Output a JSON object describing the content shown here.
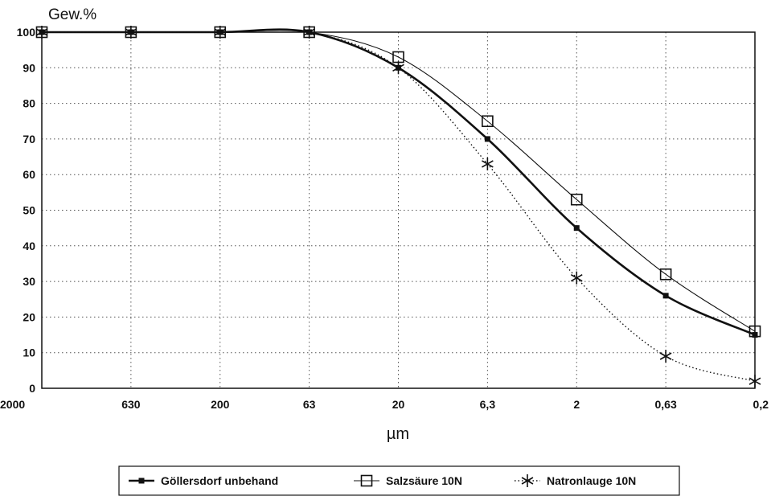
{
  "chart_data": {
    "type": "line",
    "ylabel": "Gew.%",
    "xlabel": "µm",
    "categories": [
      "2000",
      "630",
      "200",
      "63",
      "20",
      "6,3",
      "2",
      "0,63",
      "0,2"
    ],
    "y_ticks": [
      "0",
      "10",
      "20",
      "30",
      "40",
      "50",
      "60",
      "70",
      "80",
      "90",
      "100"
    ],
    "ylim": [
      0,
      100
    ],
    "grid": true,
    "legend_position": "bottom",
    "series": [
      {
        "name": "Göllersdorf unbehand",
        "marker": "filled-square",
        "line": "thick-solid",
        "values": [
          100,
          100,
          100,
          100,
          90,
          70,
          45,
          26,
          15
        ]
      },
      {
        "name": "Salzsäure 10N",
        "marker": "open-square",
        "line": "thin-solid",
        "values": [
          100,
          100,
          100,
          100,
          93,
          75,
          53,
          32,
          16
        ]
      },
      {
        "name": "Natronlauge 10N",
        "marker": "asterisk",
        "line": "dotted",
        "values": [
          100,
          100,
          100,
          100,
          90,
          63,
          31,
          9,
          2
        ]
      }
    ]
  }
}
